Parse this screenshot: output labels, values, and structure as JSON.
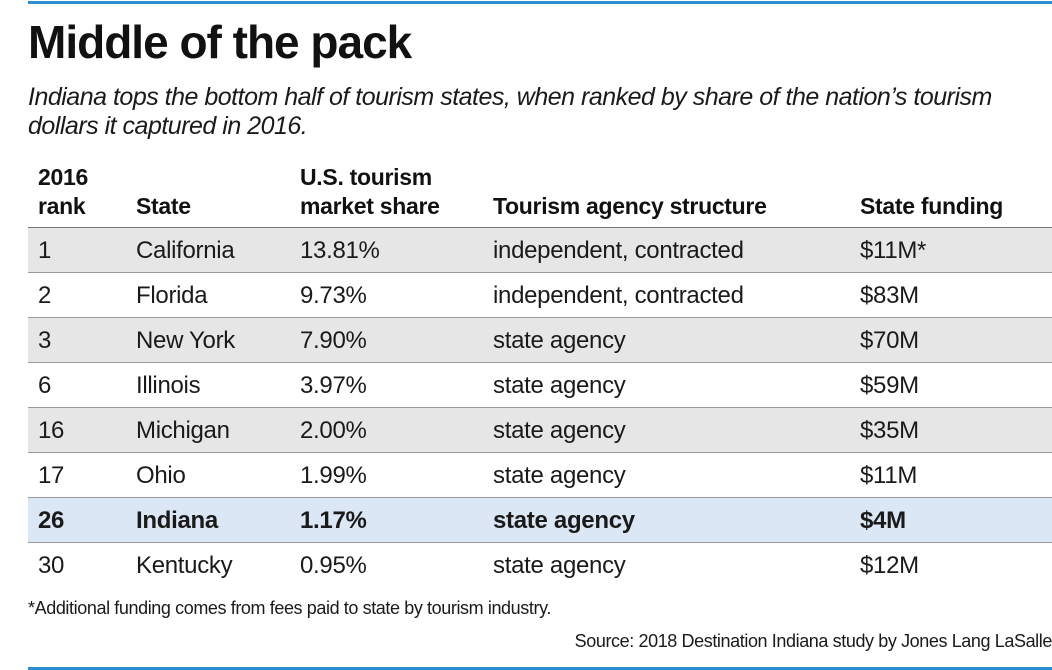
{
  "colors": {
    "accent_rule": "#2b8fd0",
    "row_shade": "#e6e6e6",
    "highlight_row": "#dbe7f4"
  },
  "chart_data": {
    "type": "table",
    "title": "Middle of the pack",
    "subtitle": "Indiana tops the bottom half of tourism states, when ranked by share of the nation’s tourism dollars it captured in 2016.",
    "columns": [
      {
        "line1": "2016",
        "line2": "rank"
      },
      {
        "line1": "",
        "line2": "State"
      },
      {
        "line1": "U.S. tourism",
        "line2": "market share"
      },
      {
        "line1": "",
        "line2": "Tourism agency structure"
      },
      {
        "line1": "",
        "line2": "State funding"
      }
    ],
    "rows": [
      {
        "rank": "1",
        "state": "California",
        "share": "13.81%",
        "structure": "independent, contracted",
        "funding": "$11M*"
      },
      {
        "rank": "2",
        "state": "Florida",
        "share": "9.73%",
        "structure": "independent, contracted",
        "funding": "$83M"
      },
      {
        "rank": "3",
        "state": "New York",
        "share": "7.90%",
        "structure": "state agency",
        "funding": "$70M"
      },
      {
        "rank": "6",
        "state": "Illinois",
        "share": "3.97%",
        "structure": "state agency",
        "funding": "$59M"
      },
      {
        "rank": "16",
        "state": "Michigan",
        "share": "2.00%",
        "structure": "state agency",
        "funding": "$35M"
      },
      {
        "rank": "17",
        "state": "Ohio",
        "share": "1.99%",
        "structure": "state agency",
        "funding": "$11M"
      },
      {
        "rank": "26",
        "state": "Indiana",
        "share": "1.17%",
        "structure": "state agency",
        "funding": "$4M"
      },
      {
        "rank": "30",
        "state": "Kentucky",
        "share": "0.95%",
        "structure": "state agency",
        "funding": "$12M"
      }
    ],
    "highlight_state": "Indiana",
    "footnote": "*Additional funding comes from fees paid to state by tourism industry.",
    "source": "Source: 2018 Destination Indiana study by Jones Lang LaSalle"
  }
}
